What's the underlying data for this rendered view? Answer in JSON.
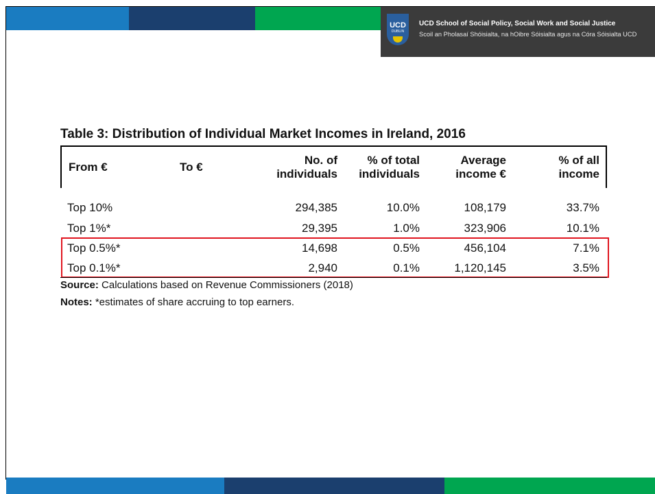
{
  "header": {
    "logo": {
      "mark": "UCD",
      "sub": "DUBLIN"
    },
    "line1": "UCD School of Social Policy, Social Work and Social Justice",
    "line2": "Scoil an Pholasaí Shóisialta, na hOibre Sóisialta agus na Córa Sóisialta UCD"
  },
  "table": {
    "title": "Table 3: Distribution of Individual Market Incomes in Ireland, 2016",
    "columns": [
      "From €",
      "To €",
      "No. of individuals",
      "% of total individuals",
      "Average income €",
      "% of all income"
    ],
    "rows": [
      [
        "Top 10%",
        "294,385",
        "10.0%",
        "108,179",
        "33.7%"
      ],
      [
        "Top 1%*",
        "29,395",
        "1.0%",
        "323,906",
        "10.1%"
      ],
      [
        "Top 0.5%*",
        "14,698",
        "0.5%",
        "456,104",
        "7.1%"
      ],
      [
        "Top 0.1%*",
        "2,940",
        "0.1%",
        "1,120,145",
        "3.5%"
      ]
    ]
  },
  "source": {
    "label": "Source:",
    "text": "Calculations based on Revenue Commissioners (2018)"
  },
  "notes": {
    "label": "Notes:",
    "text": "*estimates of share accruing to top earners."
  }
}
